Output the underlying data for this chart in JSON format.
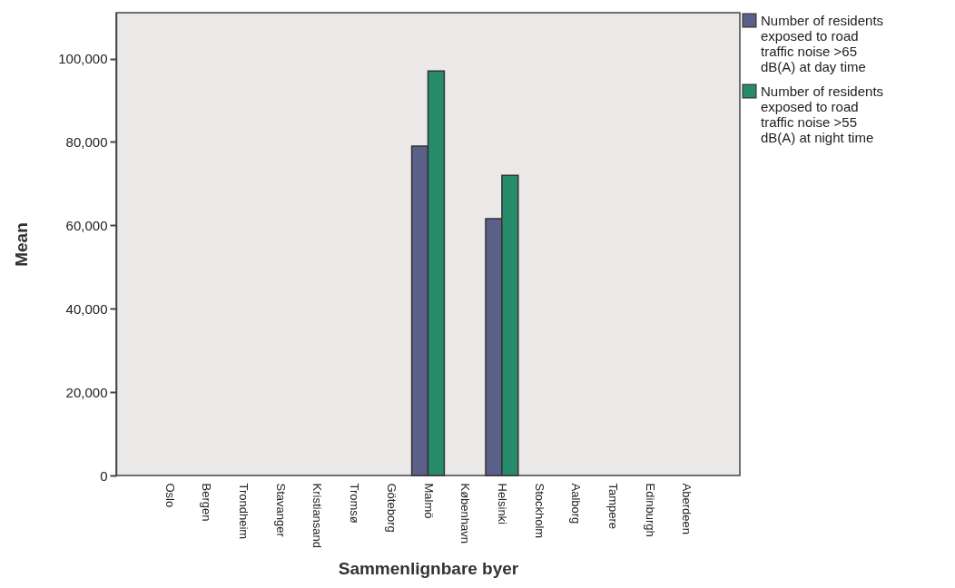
{
  "chart_data": {
    "type": "bar",
    "xlabel": "Sammenlignbare byer",
    "ylabel": "Mean",
    "categories": [
      "Oslo",
      "Bergen",
      "Trondheim",
      "Stavanger",
      "Kristiansand",
      "Tromsø",
      "Göteborg",
      "Malmö",
      "København",
      "Helsinki",
      "Stockholm",
      "Aalborg",
      "Tampere",
      "Edinburgh",
      "Aberdeen"
    ],
    "series": [
      {
        "name": "Number of residents exposed to road traffic noise >65 dB(A) at day time",
        "color": "#5a6088",
        "values": [
          null,
          null,
          null,
          null,
          null,
          null,
          null,
          79000,
          null,
          61600,
          null,
          null,
          null,
          null,
          null
        ]
      },
      {
        "name": "Number of residents exposed to road traffic noise >55 dB(A) at night time",
        "color": "#268c6c",
        "values": [
          null,
          null,
          null,
          null,
          null,
          null,
          null,
          97000,
          null,
          72000,
          null,
          null,
          null,
          null,
          null
        ]
      }
    ],
    "ylim": [
      0,
      111000
    ],
    "yticks": [
      0,
      {
        "value": 20000,
        "label": "20,000"
      },
      {
        "value": 40000,
        "label": "40,000"
      },
      {
        "value": 60000,
        "label": "60,000"
      },
      {
        "value": 80000,
        "label": "80,000"
      },
      {
        "value": 100000,
        "label": "100,000"
      }
    ],
    "grid": false,
    "legend": "top right"
  }
}
